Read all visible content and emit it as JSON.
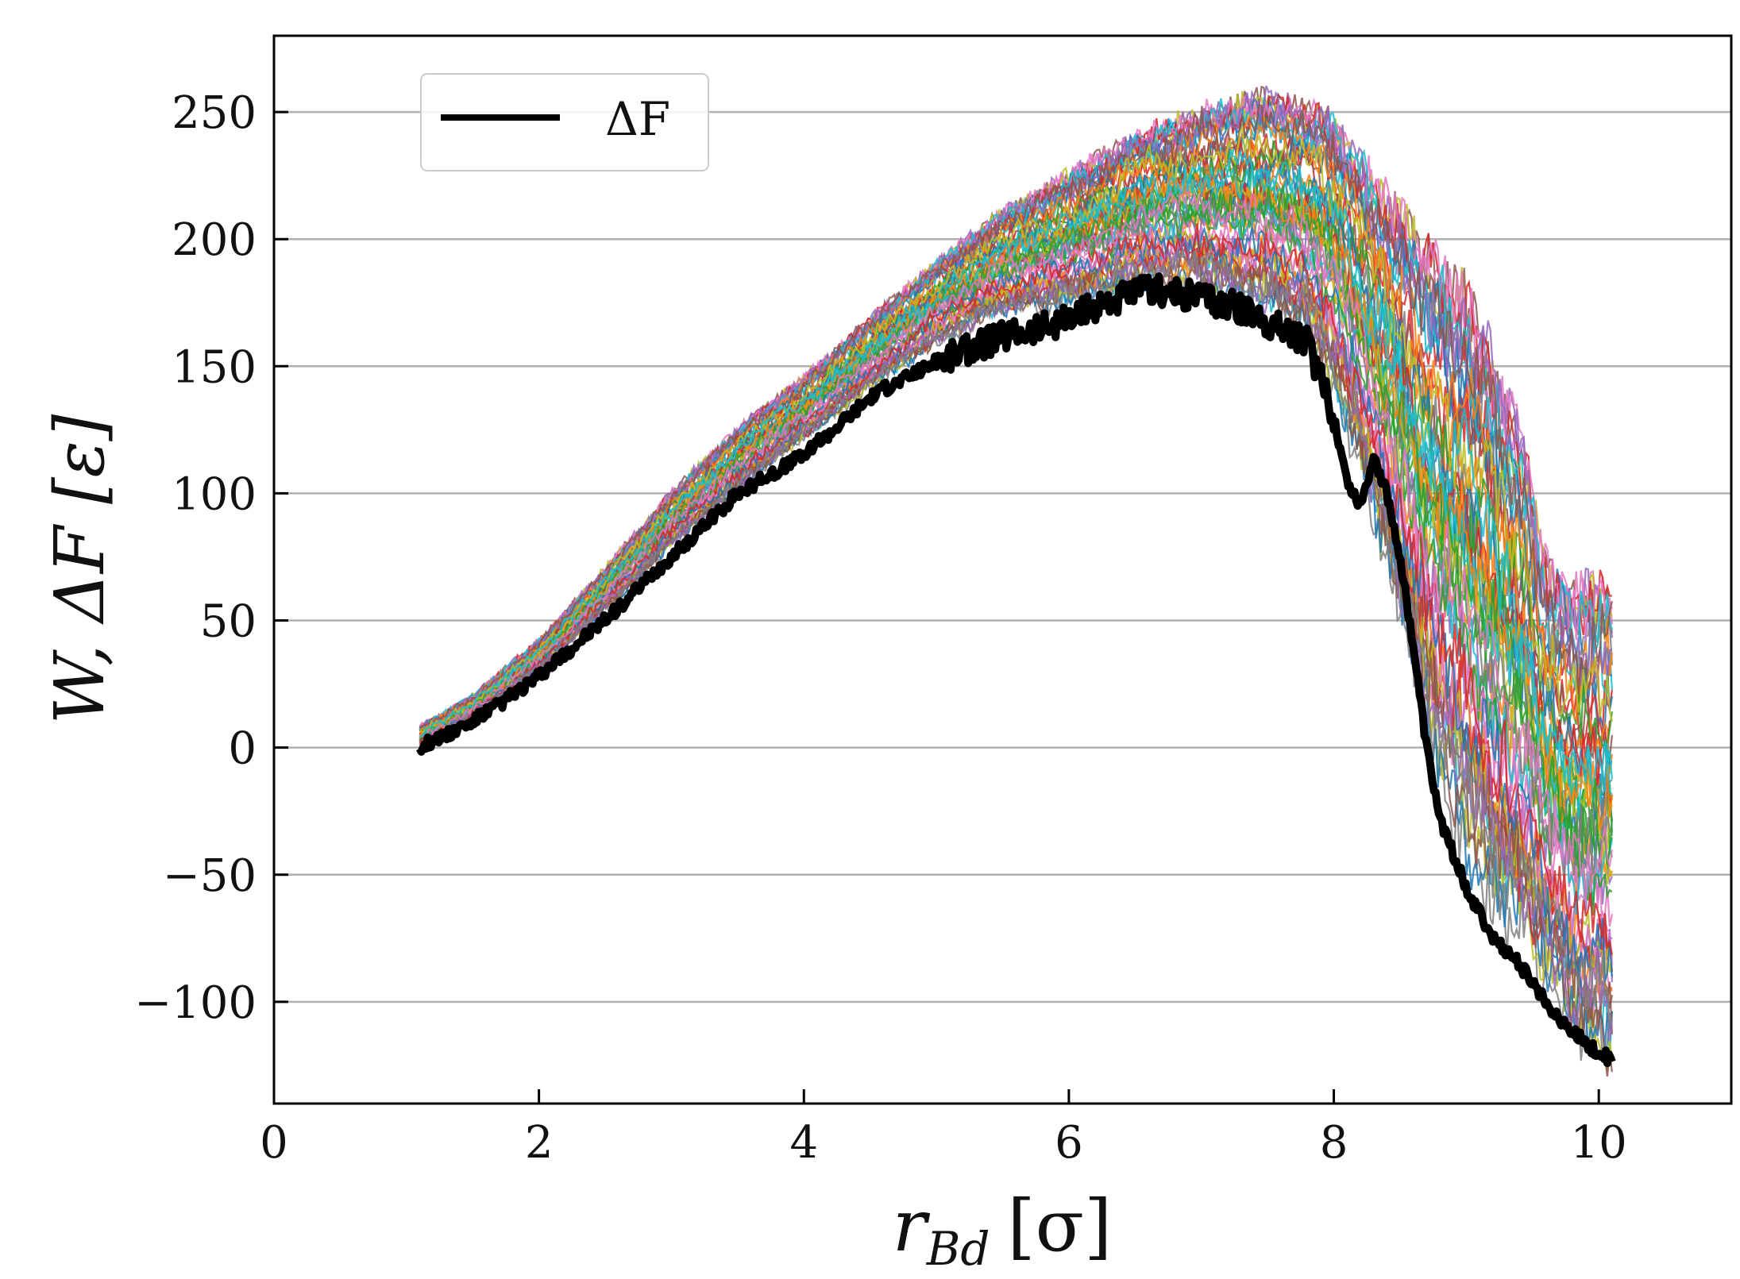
{
  "chart_data": {
    "type": "line",
    "xlabel": {
      "main": "r",
      "sub": "Bd",
      "unit": "[σ]"
    },
    "ylabel": "W,  ΔF [ε]",
    "xlim": [
      0,
      11
    ],
    "ylim": [
      -140,
      280
    ],
    "x_ticks": [
      0,
      2,
      4,
      6,
      8,
      10
    ],
    "y_ticks": [
      -100,
      -50,
      0,
      50,
      100,
      150,
      200,
      250
    ],
    "grid": "horizontal",
    "legend": {
      "placement": "top-left",
      "entries": [
        "ΔF"
      ]
    },
    "series": [
      {
        "name": "ΔF",
        "color": "#000000",
        "x": [
          1.1,
          1.5,
          2.0,
          2.5,
          3.0,
          3.5,
          4.0,
          4.5,
          5.0,
          5.5,
          6.0,
          6.3,
          6.6,
          7.0,
          7.4,
          7.8,
          8.0,
          8.1,
          8.2,
          8.3,
          8.4,
          8.5,
          8.6,
          8.7,
          8.8,
          9.0,
          9.2,
          9.4,
          9.6,
          9.8,
          10.0,
          10.1
        ],
        "y": [
          0,
          10,
          28,
          50,
          75,
          100,
          115,
          138,
          152,
          162,
          168,
          176,
          180,
          178,
          170,
          160,
          130,
          105,
          95,
          115,
          100,
          75,
          40,
          0,
          -28,
          -55,
          -75,
          -85,
          -100,
          -112,
          -120,
          -123
        ]
      }
    ],
    "trajectory_band": {
      "description_visible": false,
      "x": [
        1.1,
        1.5,
        2.0,
        2.5,
        3.0,
        3.5,
        4.0,
        4.5,
        5.0,
        5.5,
        6.0,
        6.5,
        7.0,
        7.5,
        7.8,
        8.0,
        8.2,
        8.4,
        8.6,
        8.8,
        9.0,
        9.2,
        9.4,
        9.6,
        9.8,
        10.0,
        10.1
      ],
      "low": [
        0,
        12,
        30,
        54,
        80,
        102,
        122,
        142,
        160,
        172,
        175,
        182,
        182,
        175,
        165,
        140,
        110,
        70,
        30,
        -10,
        -40,
        -60,
        -75,
        -95,
        -110,
        -118,
        -122
      ],
      "high": [
        8,
        20,
        42,
        70,
        100,
        125,
        145,
        168,
        190,
        210,
        225,
        240,
        250,
        255,
        250,
        245,
        230,
        215,
        200,
        185,
        175,
        150,
        120,
        70,
        60,
        60,
        55
      ],
      "colors": [
        "#1f77b4",
        "#ff7f0e",
        "#2ca02c",
        "#d62728",
        "#9467bd",
        "#8c564b",
        "#e377c2",
        "#7f7f7f",
        "#bcbd22",
        "#17becf"
      ]
    }
  }
}
